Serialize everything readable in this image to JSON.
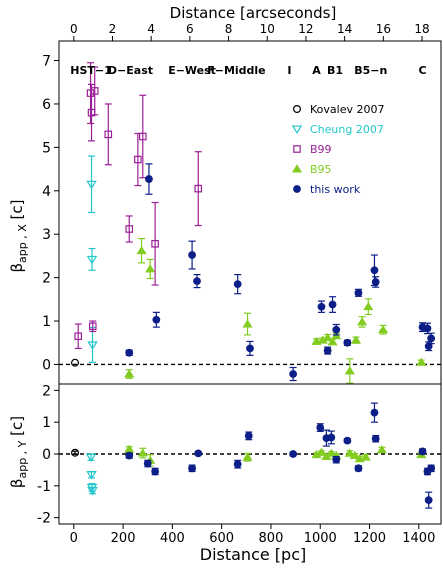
{
  "figure": {
    "top_axis_label": "Distance [arcseconds]",
    "bottom_axis_label": "Distance [pc]",
    "upper_ylabel_main": "β",
    "upper_ylabel_sub": "app , X",
    "upper_ylabel_unit": " [c]",
    "lower_ylabel_main": "β",
    "lower_ylabel_sub": "app , Y",
    "lower_ylabel_unit": " [c]"
  },
  "colors": {
    "kovalev": "#000000",
    "cheung": "#22c7cc",
    "b99": "#9b1f97",
    "b95": "#82cc22",
    "thiswork": "#0c1e87"
  },
  "chart_data": {
    "type": "scatter",
    "x_axis_bottom": {
      "label": "Distance [pc]",
      "range": [
        -60,
        1490
      ],
      "ticks": [
        0,
        200,
        400,
        600,
        800,
        1000,
        1200,
        1400
      ]
    },
    "x_axis_top": {
      "label": "Distance [arcseconds]",
      "ticks": [
        0,
        2,
        4,
        6,
        8,
        10,
        12,
        14,
        16,
        18
      ],
      "pc_per_arcsec": 78.5
    },
    "feature_labels": [
      {
        "text": "HST−1",
        "x": 70
      },
      {
        "text": "D−East",
        "x": 230
      },
      {
        "text": "E−West",
        "x": 480
      },
      {
        "text": "F−Middle",
        "x": 660
      },
      {
        "text": "I",
        "x": 875
      },
      {
        "text": "A",
        "x": 985
      },
      {
        "text": "B1",
        "x": 1060
      },
      {
        "text": "B5−n",
        "x": 1205
      },
      {
        "text": "C",
        "x": 1415
      }
    ],
    "legend": [
      {
        "key": "kovalev",
        "label": "Kovalev 2007"
      },
      {
        "key": "cheung",
        "label": "Cheung 2007"
      },
      {
        "key": "b99",
        "label": "B99"
      },
      {
        "key": "b95",
        "label": "B95"
      },
      {
        "key": "thiswork",
        "label": "this work"
      }
    ],
    "panels": [
      {
        "id": "upper",
        "ylabel": "β app , X [c]",
        "yrange": [
          -0.45,
          7.45
        ],
        "yticks": [
          0,
          1,
          2,
          3,
          4,
          5,
          6,
          7
        ],
        "reference_line": 0,
        "series": [
          {
            "key": "kovalev",
            "marker": "open-circle",
            "points": [
              {
                "x": 5,
                "y": 0.04,
                "err": 0
              }
            ]
          },
          {
            "key": "cheung",
            "marker": "open-triangle-down",
            "points": [
              {
                "x": 72,
                "y": 4.15,
                "err": 0.65
              },
              {
                "x": 74,
                "y": 2.42,
                "err": 0.25
              },
              {
                "x": 76,
                "y": 0.45,
                "err": 0.4
              }
            ]
          },
          {
            "key": "b99",
            "marker": "open-square",
            "points": [
              {
                "x": 18,
                "y": 0.65,
                "err": 0.28
              },
              {
                "x": 68,
                "y": 6.25,
                "err": 0.7
              },
              {
                "x": 72,
                "y": 5.8,
                "err": 0.65
              },
              {
                "x": 77,
                "y": 0.88,
                "err": 0.12
              },
              {
                "x": 85,
                "y": 6.3,
                "err": 0.55
              },
              {
                "x": 140,
                "y": 5.3,
                "err": 0.7
              },
              {
                "x": 225,
                "y": 3.12,
                "err": 0.3
              },
              {
                "x": 260,
                "y": 4.72,
                "err": 0.6
              },
              {
                "x": 280,
                "y": 5.25,
                "err": 0.95
              },
              {
                "x": 330,
                "y": 2.78,
                "err": 0.95
              },
              {
                "x": 505,
                "y": 4.05,
                "err": 0.85
              }
            ]
          },
          {
            "key": "b95",
            "marker": "filled-triangle-up",
            "points": [
              {
                "x": 225,
                "y": -0.22,
                "err": 0.1
              },
              {
                "x": 275,
                "y": 2.62,
                "err": 0.28
              },
              {
                "x": 310,
                "y": 2.2,
                "err": 0.22
              },
              {
                "x": 705,
                "y": 0.93,
                "err": 0.25
              },
              {
                "x": 985,
                "y": 0.53,
                "err": 0.06
              },
              {
                "x": 1010,
                "y": 0.56,
                "err": 0.05
              },
              {
                "x": 1030,
                "y": 0.62,
                "err": 0.07
              },
              {
                "x": 1050,
                "y": 0.52,
                "err": 0.06
              },
              {
                "x": 1065,
                "y": 0.66,
                "err": 0.06
              },
              {
                "x": 1120,
                "y": -0.15,
                "err": 0.28
              },
              {
                "x": 1145,
                "y": 0.56,
                "err": 0.07
              },
              {
                "x": 1170,
                "y": 0.98,
                "err": 0.12
              },
              {
                "x": 1195,
                "y": 1.33,
                "err": 0.18
              },
              {
                "x": 1255,
                "y": 0.8,
                "err": 0.1
              },
              {
                "x": 1410,
                "y": 0.05,
                "err": 0.05
              }
            ]
          },
          {
            "key": "thiswork",
            "marker": "filled-circle",
            "points": [
              {
                "x": 225,
                "y": 0.27,
                "err": 0.06
              },
              {
                "x": 305,
                "y": 4.27,
                "err": 0.35
              },
              {
                "x": 335,
                "y": 1.03,
                "err": 0.17
              },
              {
                "x": 480,
                "y": 2.52,
                "err": 0.32
              },
              {
                "x": 500,
                "y": 1.92,
                "err": 0.15
              },
              {
                "x": 665,
                "y": 1.85,
                "err": 0.22
              },
              {
                "x": 715,
                "y": 0.37,
                "err": 0.16
              },
              {
                "x": 890,
                "y": -0.22,
                "err": 0.15
              },
              {
                "x": 1005,
                "y": 1.33,
                "err": 0.13
              },
              {
                "x": 1030,
                "y": 0.32,
                "err": 0.08
              },
              {
                "x": 1050,
                "y": 1.38,
                "err": 0.18
              },
              {
                "x": 1065,
                "y": 0.8,
                "err": 0.12
              },
              {
                "x": 1110,
                "y": 0.5,
                "err": 0.06
              },
              {
                "x": 1155,
                "y": 1.65,
                "err": 0.08
              },
              {
                "x": 1220,
                "y": 2.17,
                "err": 0.35
              },
              {
                "x": 1225,
                "y": 1.9,
                "err": 0.12
              },
              {
                "x": 1415,
                "y": 0.86,
                "err": 0.1
              },
              {
                "x": 1435,
                "y": 0.83,
                "err": 0.12
              },
              {
                "x": 1440,
                "y": 0.42,
                "err": 0.1
              },
              {
                "x": 1450,
                "y": 0.6,
                "err": 0.12
              }
            ]
          }
        ]
      },
      {
        "id": "lower",
        "ylabel": "β app , Y [c]",
        "yrange": [
          -2.2,
          2.2
        ],
        "yticks": [
          -2,
          -1,
          0,
          1,
          2
        ],
        "reference_line": 0,
        "series": [
          {
            "key": "kovalev",
            "marker": "open-circle",
            "points": [
              {
                "x": 5,
                "y": 0.04,
                "err": 0.05
              }
            ]
          },
          {
            "key": "cheung",
            "marker": "open-triangle-down",
            "points": [
              {
                "x": 70,
                "y": -0.1,
                "err": 0.1
              },
              {
                "x": 72,
                "y": -0.65,
                "err": 0.1
              },
              {
                "x": 74,
                "y": -1.05,
                "err": 0.12
              },
              {
                "x": 76,
                "y": -1.15,
                "err": 0.1
              }
            ]
          },
          {
            "key": "b95",
            "marker": "filled-triangle-up",
            "points": [
              {
                "x": 225,
                "y": 0.15,
                "err": 0.08
              },
              {
                "x": 280,
                "y": 0.03,
                "err": 0.15
              },
              {
                "x": 310,
                "y": -0.2,
                "err": 0.18
              },
              {
                "x": 705,
                "y": -0.1,
                "err": 0.12
              },
              {
                "x": 985,
                "y": -0.02,
                "err": 0.05
              },
              {
                "x": 1005,
                "y": 0.05,
                "err": 0.05
              },
              {
                "x": 1025,
                "y": -0.08,
                "err": 0.06
              },
              {
                "x": 1045,
                "y": 0.02,
                "err": 0.05
              },
              {
                "x": 1065,
                "y": -0.05,
                "err": 0.05
              },
              {
                "x": 1120,
                "y": 0.02,
                "err": 0.08
              },
              {
                "x": 1140,
                "y": -0.05,
                "err": 0.06
              },
              {
                "x": 1160,
                "y": -0.15,
                "err": 0.08
              },
              {
                "x": 1185,
                "y": -0.1,
                "err": 0.08
              },
              {
                "x": 1250,
                "y": 0.13,
                "err": 0.08
              },
              {
                "x": 1410,
                "y": -0.02,
                "err": 0.05
              }
            ]
          },
          {
            "key": "thiswork",
            "marker": "filled-circle",
            "points": [
              {
                "x": 225,
                "y": -0.05,
                "err": 0.08
              },
              {
                "x": 300,
                "y": -0.3,
                "err": 0.1
              },
              {
                "x": 330,
                "y": -0.55,
                "err": 0.1
              },
              {
                "x": 480,
                "y": -0.45,
                "err": 0.1
              },
              {
                "x": 505,
                "y": 0.02,
                "err": 0.05
              },
              {
                "x": 665,
                "y": -0.32,
                "err": 0.12
              },
              {
                "x": 710,
                "y": 0.57,
                "err": 0.12
              },
              {
                "x": 890,
                "y": 0.0,
                "err": 0.05
              },
              {
                "x": 1000,
                "y": 0.83,
                "err": 0.12
              },
              {
                "x": 1025,
                "y": 0.5,
                "err": 0.25
              },
              {
                "x": 1045,
                "y": 0.52,
                "err": 0.2
              },
              {
                "x": 1065,
                "y": -0.18,
                "err": 0.1
              },
              {
                "x": 1110,
                "y": 0.42,
                "err": 0.06
              },
              {
                "x": 1155,
                "y": -0.45,
                "err": 0.08
              },
              {
                "x": 1220,
                "y": 1.3,
                "err": 0.3
              },
              {
                "x": 1225,
                "y": 0.48,
                "err": 0.1
              },
              {
                "x": 1415,
                "y": 0.08,
                "err": 0.08
              },
              {
                "x": 1435,
                "y": -0.55,
                "err": 0.1
              },
              {
                "x": 1440,
                "y": -1.45,
                "err": 0.25
              },
              {
                "x": 1450,
                "y": -0.45,
                "err": 0.1
              }
            ]
          }
        ]
      }
    ]
  }
}
